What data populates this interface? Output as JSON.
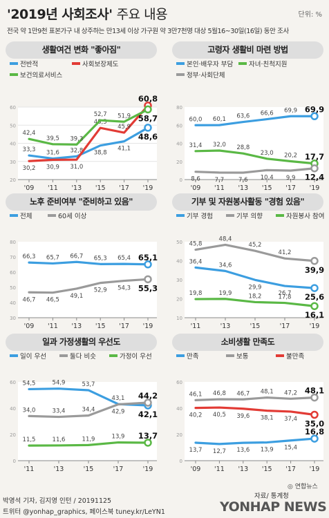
{
  "header": {
    "title_main": "'2019년 사회조사'",
    "title_sub": "주요 내용",
    "unit": "단위: %",
    "subtitle": "전국 약 1만9천 표본가구 내 상주하는 만13세 이상 가구원 약 3만7천명 대상 5월16~30일(16일) 동안 조사"
  },
  "colors": {
    "blue": "#3c9ee0",
    "red": "#e23b35",
    "green": "#5ab845",
    "gray": "#9a9a9a",
    "panel": "#dedede",
    "plot": "#ffffff"
  },
  "chart_data": [
    {
      "id": "p1",
      "type": "line",
      "title": "생활여건 변화 \"좋아짐\"",
      "categories": [
        "'09",
        "'11",
        "'13",
        "'15",
        "'17",
        "'19"
      ],
      "ylim": [
        20,
        60
      ],
      "yticks": [
        20,
        30,
        40,
        50,
        60
      ],
      "grid": true,
      "legend_rows": 2,
      "series": [
        {
          "name": "전반적",
          "color": "#3c9ee0",
          "values": [
            33.3,
            31.6,
            32.8,
            38.8,
            41.1,
            48.6
          ],
          "labels": [
            "33,3",
            "31,6",
            "32,8",
            "38,8",
            "41,1",
            "48,6"
          ],
          "pos": [
            "above",
            "above",
            "above",
            "below",
            "below",
            "below"
          ]
        },
        {
          "name": "사회보장제도",
          "color": "#e23b35",
          "values": [
            30.2,
            30.9,
            31.0,
            48.5,
            45.9,
            60.8
          ],
          "labels": [
            "30,2",
            "30,9",
            "31,0",
            "48,5",
            "45,9",
            "60,8"
          ],
          "pos": [
            "below",
            "below",
            "below",
            "above",
            "above",
            "above"
          ]
        },
        {
          "name": "보건의료서비스",
          "color": "#5ab845",
          "values": [
            42.4,
            39.5,
            39.3,
            52.7,
            51.9,
            58.7
          ],
          "labels": [
            "42,4",
            "39,5",
            "39,3",
            "52,7",
            "51,9",
            "58,7"
          ],
          "pos": [
            "above",
            "above",
            "above",
            "above",
            "above",
            "below"
          ]
        }
      ]
    },
    {
      "id": "p2",
      "type": "line",
      "title": "고령자 생활비 마련 방법",
      "categories": [
        "'09",
        "'11",
        "'13",
        "'15",
        "'17",
        "'19"
      ],
      "ylim": [
        0,
        80
      ],
      "yticks": [
        0,
        20,
        40,
        60,
        80
      ],
      "grid": false,
      "legend_rows": 2,
      "series": [
        {
          "name": "본인·배우자 부담",
          "color": "#3c9ee0",
          "values": [
            60.0,
            60.1,
            63.6,
            66.6,
            69.9,
            69.9
          ],
          "labels": [
            "60,0",
            "60,1",
            "63,6",
            "66,6",
            "69,9",
            "69,9"
          ],
          "pos": [
            "above",
            "above",
            "above",
            "above",
            "above",
            "above"
          ]
        },
        {
          "name": "자녀·친척지원",
          "color": "#5ab845",
          "values": [
            31.4,
            32.0,
            28.8,
            23.0,
            20.2,
            17.7
          ],
          "labels": [
            "31,4",
            "32,0",
            "28,8",
            "23,0",
            "20,2",
            "17,7"
          ],
          "pos": [
            "above",
            "above",
            "above",
            "above",
            "above",
            "above"
          ]
        },
        {
          "name": "정부·사회단체",
          "color": "#9a9a9a",
          "values": [
            8.6,
            7.7,
            7.6,
            10.4,
            9.9,
            12.4
          ],
          "labels": [
            "8,6",
            "7,7",
            "7,6",
            "10,4",
            "9,9",
            "12,4"
          ],
          "pos": [
            "below",
            "below",
            "below",
            "below",
            "below",
            "below"
          ]
        }
      ]
    },
    {
      "id": "p3",
      "type": "line",
      "title": "노후 준비여부 \"준비하고 있음\"",
      "categories": [
        "'09",
        "'11",
        "'13",
        "'15",
        "'17",
        "'19"
      ],
      "ylim": [
        30,
        80
      ],
      "yticks": [
        30,
        40,
        50,
        60,
        70,
        80
      ],
      "grid": false,
      "legend_rows": 1,
      "series": [
        {
          "name": "전체",
          "color": "#3c9ee0",
          "values": [
            66.3,
            65.7,
            66.7,
            65.3,
            65.4,
            65.1
          ],
          "labels": [
            "66,3",
            "65,7",
            "66,7",
            "65,3",
            "65,4",
            "65,1"
          ],
          "pos": [
            "above",
            "above",
            "above",
            "above",
            "above",
            "above"
          ]
        },
        {
          "name": "60세 이상",
          "color": "#9a9a9a",
          "values": [
            46.7,
            46.5,
            49.1,
            52.9,
            54.3,
            55.3
          ],
          "labels": [
            "46,7",
            "46,5",
            "49,1",
            "52,9",
            "54,3",
            "55,3"
          ],
          "pos": [
            "below",
            "below",
            "below",
            "below",
            "below",
            "below"
          ]
        }
      ]
    },
    {
      "id": "p4",
      "type": "line",
      "title": "기부 및 자원봉사활동 \"경험 있음\"",
      "categories": [
        "'11",
        "'13",
        "'15",
        "'17",
        "'19"
      ],
      "ylim": [
        10,
        50
      ],
      "yticks": [
        10,
        20,
        30,
        40,
        50
      ],
      "grid": false,
      "legend_rows": 1,
      "series": [
        {
          "name": "기부 경험",
          "color": "#3c9ee0",
          "values": [
            36.4,
            34.6,
            29.9,
            26.7,
            25.6
          ],
          "labels": [
            "36,4",
            "34,6",
            "29,9",
            "26,7",
            "25,6"
          ],
          "pos": [
            "above",
            "above",
            "below",
            "below",
            "below"
          ]
        },
        {
          "name": "기부 의향",
          "color": "#9a9a9a",
          "values": [
            45.8,
            48.4,
            45.2,
            41.2,
            39.9
          ],
          "labels": [
            "45,8",
            "48,4",
            "45,2",
            "41,2",
            "39,9"
          ],
          "pos": [
            "above",
            "above",
            "above",
            "above",
            "below"
          ]
        },
        {
          "name": "자원봉사 참여",
          "color": "#5ab845",
          "values": [
            19.8,
            19.9,
            18.2,
            17.8,
            16.1
          ],
          "labels": [
            "19,8",
            "19,9",
            "18,2",
            "17,8",
            "16,1"
          ],
          "pos": [
            "above",
            "above",
            "above",
            "above",
            "below"
          ]
        }
      ]
    },
    {
      "id": "p5",
      "type": "line",
      "title": "일과 가정생활의 우선도",
      "categories": [
        "'11",
        "'13",
        "'15",
        "'17",
        "'19"
      ],
      "ylim": [
        0,
        60
      ],
      "yticks": [
        0,
        20,
        40,
        60
      ],
      "grid": false,
      "legend_rows": 1,
      "series": [
        {
          "name": "일이 우선",
          "color": "#3c9ee0",
          "values": [
            54.5,
            54.9,
            53.7,
            43.1,
            42.1
          ],
          "labels": [
            "54,5",
            "54,9",
            "53,7",
            "43,1",
            "42,1"
          ],
          "pos": [
            "above",
            "above",
            "above",
            "above",
            "below"
          ]
        },
        {
          "name": "둘다 비슷",
          "color": "#9a9a9a",
          "values": [
            34.0,
            33.4,
            34.4,
            42.9,
            44.2
          ],
          "labels": [
            "34,0",
            "33,4",
            "34,4",
            "42,9",
            "44,2"
          ],
          "pos": [
            "above",
            "above",
            "above",
            "below",
            "above"
          ]
        },
        {
          "name": "가정이 우선",
          "color": "#5ab845",
          "values": [
            11.5,
            11.6,
            11.9,
            13.9,
            13.7
          ],
          "labels": [
            "11,5",
            "11,6",
            "11,9",
            "13,9",
            "13,7"
          ],
          "pos": [
            "above",
            "above",
            "above",
            "above",
            "above"
          ]
        }
      ]
    },
    {
      "id": "p6",
      "type": "line",
      "title": "소비생활 만족도",
      "categories": [
        "'09",
        "'11",
        "'13",
        "'15",
        "'17",
        "'19"
      ],
      "ylim": [
        0,
        60
      ],
      "yticks": [
        0,
        20,
        40,
        60
      ],
      "grid": false,
      "legend_rows": 1,
      "series": [
        {
          "name": "만족",
          "color": "#3c9ee0",
          "values": [
            13.7,
            12.7,
            13.6,
            13.9,
            15.4,
            16.8
          ],
          "labels": [
            "13,7",
            "12,7",
            "13,6",
            "13,9",
            "15,4",
            "16,8"
          ],
          "pos": [
            "below",
            "below",
            "below",
            "below",
            "below",
            "above"
          ]
        },
        {
          "name": "보통",
          "color": "#9a9a9a",
          "values": [
            46.1,
            46.8,
            46.7,
            48.1,
            47.2,
            48.1
          ],
          "labels": [
            "46,1",
            "46,8",
            "46,7",
            "48,1",
            "47,2",
            "48,1"
          ],
          "pos": [
            "above",
            "above",
            "above",
            "above",
            "above",
            "above"
          ]
        },
        {
          "name": "불만족",
          "color": "#e23b35",
          "values": [
            40.2,
            40.5,
            39.6,
            38.1,
            37.4,
            35.0
          ],
          "labels": [
            "40,2",
            "40,5",
            "39,6",
            "38,1",
            "37,4",
            "35,0"
          ],
          "pos": [
            "below",
            "below",
            "below",
            "below",
            "below",
            "below"
          ]
        }
      ]
    }
  ],
  "footer": {
    "credit": "박영석 기자, 김지영 인턴 / 20191125",
    "social": "트위터 @yonhap_graphics, 페이스북 tuney.kr/LeYN1",
    "source": "자료/ 통계청",
    "logo_small": "◎ 연합뉴스",
    "logo_big": "YONHAP NEWS"
  }
}
